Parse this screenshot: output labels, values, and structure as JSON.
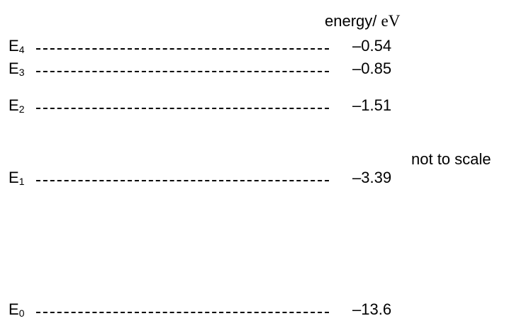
{
  "diagram": {
    "axis_label": "energy/",
    "axis_unit": "eV",
    "note": "not to scale",
    "levels": [
      {
        "symbol": "E",
        "index": "4",
        "energy": "–0.54"
      },
      {
        "symbol": "E",
        "index": "3",
        "energy": "–0.85"
      },
      {
        "symbol": "E",
        "index": "2",
        "energy": "–1.51"
      },
      {
        "symbol": "E",
        "index": "1",
        "energy": "–3.39"
      },
      {
        "symbol": "E",
        "index": "0",
        "energy": "–13.6"
      }
    ]
  }
}
